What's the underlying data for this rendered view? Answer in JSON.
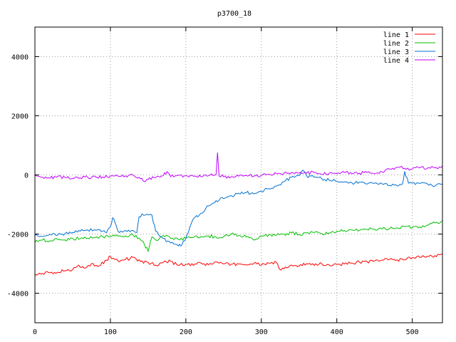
{
  "chart_data": {
    "type": "line",
    "title": "p3700_18",
    "xlabel": "",
    "ylabel": "",
    "xlim": [
      0,
      540
    ],
    "ylim": [
      -5000,
      5000
    ],
    "x_ticks": [
      0,
      100,
      200,
      300,
      400,
      500
    ],
    "y_ticks": [
      -4000,
      -2000,
      0,
      2000,
      4000
    ],
    "grid": true,
    "legend_position": "top-right",
    "series": [
      {
        "name": "line 1",
        "color": "#ff0000",
        "points": [
          [
            0,
            -3350
          ],
          [
            10,
            -3330
          ],
          [
            20,
            -3310
          ],
          [
            30,
            -3290
          ],
          [
            40,
            -3240
          ],
          [
            50,
            -3200
          ],
          [
            58,
            -3050
          ],
          [
            65,
            -3150
          ],
          [
            75,
            -3000
          ],
          [
            85,
            -3080
          ],
          [
            95,
            -2880
          ],
          [
            100,
            -2760
          ],
          [
            110,
            -2900
          ],
          [
            120,
            -2860
          ],
          [
            130,
            -2790
          ],
          [
            140,
            -2930
          ],
          [
            150,
            -2960
          ],
          [
            160,
            -3050
          ],
          [
            170,
            -2960
          ],
          [
            180,
            -2920
          ],
          [
            190,
            -3060
          ],
          [
            200,
            -3020
          ],
          [
            210,
            -3060
          ],
          [
            220,
            -2980
          ],
          [
            230,
            -3040
          ],
          [
            240,
            -2940
          ],
          [
            250,
            -3010
          ],
          [
            260,
            -3030
          ],
          [
            270,
            -3010
          ],
          [
            280,
            -3040
          ],
          [
            290,
            -2990
          ],
          [
            300,
            -3050
          ],
          [
            310,
            -2980
          ],
          [
            320,
            -2960
          ],
          [
            325,
            -3210
          ],
          [
            330,
            -3170
          ],
          [
            340,
            -3050
          ],
          [
            350,
            -3080
          ],
          [
            360,
            -3000
          ],
          [
            370,
            -3060
          ],
          [
            380,
            -3000
          ],
          [
            390,
            -3050
          ],
          [
            400,
            -3030
          ],
          [
            410,
            -3010
          ],
          [
            420,
            -2980
          ],
          [
            430,
            -2950
          ],
          [
            440,
            -2930
          ],
          [
            450,
            -2910
          ],
          [
            460,
            -2880
          ],
          [
            470,
            -2860
          ],
          [
            480,
            -2870
          ],
          [
            490,
            -2870
          ],
          [
            500,
            -2800
          ],
          [
            510,
            -2790
          ],
          [
            520,
            -2750
          ],
          [
            530,
            -2730
          ],
          [
            540,
            -2660
          ]
        ]
      },
      {
        "name": "line 2",
        "color": "#00c000",
        "points": [
          [
            0,
            -2280
          ],
          [
            10,
            -2200
          ],
          [
            20,
            -2230
          ],
          [
            30,
            -2180
          ],
          [
            40,
            -2200
          ],
          [
            50,
            -2150
          ],
          [
            60,
            -2160
          ],
          [
            70,
            -2140
          ],
          [
            80,
            -2110
          ],
          [
            90,
            -2090
          ],
          [
            100,
            -2080
          ],
          [
            110,
            -2070
          ],
          [
            120,
            -2060
          ],
          [
            130,
            -2030
          ],
          [
            140,
            -2200
          ],
          [
            145,
            -2350
          ],
          [
            150,
            -2580
          ],
          [
            155,
            -2100
          ],
          [
            160,
            -2200
          ],
          [
            170,
            -2050
          ],
          [
            180,
            -2150
          ],
          [
            190,
            -2180
          ],
          [
            200,
            -2140
          ],
          [
            210,
            -2120
          ],
          [
            220,
            -2080
          ],
          [
            230,
            -2060
          ],
          [
            240,
            -2100
          ],
          [
            250,
            -2090
          ],
          [
            260,
            -2000
          ],
          [
            270,
            -2050
          ],
          [
            280,
            -2100
          ],
          [
            290,
            -2200
          ],
          [
            300,
            -2080
          ],
          [
            310,
            -2020
          ],
          [
            320,
            -2040
          ],
          [
            330,
            -2000
          ],
          [
            340,
            -1960
          ],
          [
            350,
            -2010
          ],
          [
            360,
            -1960
          ],
          [
            370,
            -1950
          ],
          [
            380,
            -1980
          ],
          [
            390,
            -1960
          ],
          [
            400,
            -1900
          ],
          [
            410,
            -1880
          ],
          [
            420,
            -1860
          ],
          [
            430,
            -1880
          ],
          [
            440,
            -1840
          ],
          [
            450,
            -1840
          ],
          [
            460,
            -1830
          ],
          [
            470,
            -1820
          ],
          [
            480,
            -1790
          ],
          [
            490,
            -1740
          ],
          [
            500,
            -1780
          ],
          [
            510,
            -1760
          ],
          [
            520,
            -1700
          ],
          [
            530,
            -1620
          ],
          [
            540,
            -1560
          ]
        ]
      },
      {
        "name": "line 3",
        "color": "#0070d0",
        "points": [
          [
            0,
            -2050
          ],
          [
            10,
            -2080
          ],
          [
            20,
            -2010
          ],
          [
            30,
            -2040
          ],
          [
            40,
            -1980
          ],
          [
            50,
            -1950
          ],
          [
            60,
            -1900
          ],
          [
            70,
            -1860
          ],
          [
            80,
            -1860
          ],
          [
            90,
            -1900
          ],
          [
            95,
            -1950
          ],
          [
            100,
            -1760
          ],
          [
            103,
            -1450
          ],
          [
            106,
            -1600
          ],
          [
            110,
            -1900
          ],
          [
            120,
            -1880
          ],
          [
            130,
            -1880
          ],
          [
            135,
            -1950
          ],
          [
            138,
            -1420
          ],
          [
            142,
            -1320
          ],
          [
            150,
            -1350
          ],
          [
            155,
            -1360
          ],
          [
            160,
            -1900
          ],
          [
            170,
            -2150
          ],
          [
            180,
            -2300
          ],
          [
            190,
            -2400
          ],
          [
            195,
            -2350
          ],
          [
            200,
            -2150
          ],
          [
            205,
            -1800
          ],
          [
            210,
            -1480
          ],
          [
            220,
            -1300
          ],
          [
            230,
            -1050
          ],
          [
            240,
            -870
          ],
          [
            250,
            -800
          ],
          [
            260,
            -700
          ],
          [
            270,
            -620
          ],
          [
            280,
            -600
          ],
          [
            290,
            -640
          ],
          [
            300,
            -550
          ],
          [
            310,
            -460
          ],
          [
            320,
            -380
          ],
          [
            330,
            -230
          ],
          [
            340,
            -80
          ],
          [
            350,
            -30
          ],
          [
            355,
            160
          ],
          [
            360,
            -30
          ],
          [
            370,
            -80
          ],
          [
            380,
            -130
          ],
          [
            390,
            -180
          ],
          [
            400,
            -210
          ],
          [
            410,
            -240
          ],
          [
            420,
            -270
          ],
          [
            430,
            -250
          ],
          [
            440,
            -310
          ],
          [
            450,
            -280
          ],
          [
            460,
            -300
          ],
          [
            470,
            -350
          ],
          [
            480,
            -370
          ],
          [
            487,
            -300
          ],
          [
            490,
            120
          ],
          [
            495,
            -280
          ],
          [
            500,
            -280
          ],
          [
            510,
            -290
          ],
          [
            520,
            -300
          ],
          [
            530,
            -380
          ],
          [
            540,
            -310
          ]
        ]
      },
      {
        "name": "line 4",
        "color": "#c000ff",
        "points": [
          [
            0,
            -20
          ],
          [
            10,
            -80
          ],
          [
            20,
            -110
          ],
          [
            30,
            -60
          ],
          [
            40,
            -90
          ],
          [
            50,
            -120
          ],
          [
            60,
            -100
          ],
          [
            70,
            -80
          ],
          [
            80,
            -60
          ],
          [
            90,
            -70
          ],
          [
            100,
            -40
          ],
          [
            110,
            -40
          ],
          [
            120,
            -30
          ],
          [
            130,
            -10
          ],
          [
            140,
            -130
          ],
          [
            145,
            -230
          ],
          [
            150,
            -150
          ],
          [
            160,
            -90
          ],
          [
            170,
            -30
          ],
          [
            175,
            110
          ],
          [
            180,
            -60
          ],
          [
            190,
            -10
          ],
          [
            200,
            -30
          ],
          [
            210,
            -40
          ],
          [
            220,
            -60
          ],
          [
            230,
            -30
          ],
          [
            240,
            10
          ],
          [
            242,
            760
          ],
          [
            244,
            -40
          ],
          [
            250,
            -60
          ],
          [
            260,
            -60
          ],
          [
            270,
            -40
          ],
          [
            280,
            -20
          ],
          [
            290,
            -40
          ],
          [
            300,
            -20
          ],
          [
            310,
            20
          ],
          [
            320,
            40
          ],
          [
            330,
            60
          ],
          [
            340,
            80
          ],
          [
            350,
            60
          ],
          [
            360,
            60
          ],
          [
            370,
            80
          ],
          [
            380,
            20
          ],
          [
            390,
            60
          ],
          [
            400,
            40
          ],
          [
            410,
            80
          ],
          [
            420,
            40
          ],
          [
            430,
            60
          ],
          [
            440,
            80
          ],
          [
            450,
            40
          ],
          [
            460,
            100
          ],
          [
            470,
            200
          ],
          [
            480,
            260
          ],
          [
            490,
            220
          ],
          [
            500,
            200
          ],
          [
            510,
            240
          ],
          [
            520,
            230
          ],
          [
            530,
            240
          ],
          [
            540,
            300
          ]
        ]
      }
    ]
  }
}
